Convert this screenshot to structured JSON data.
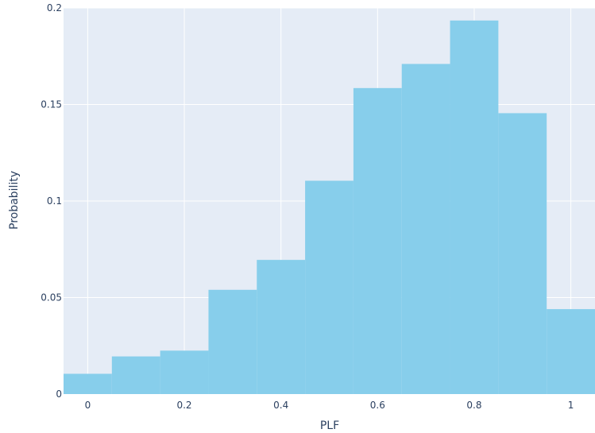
{
  "chart_data": {
    "type": "bar",
    "subtype": "histogram",
    "xlabel": "PLF",
    "ylabel": "Probability",
    "bins": [
      {
        "start": -0.05,
        "end": 0.05,
        "value": 0.0105
      },
      {
        "start": 0.05,
        "end": 0.15,
        "value": 0.0195
      },
      {
        "start": 0.15,
        "end": 0.25,
        "value": 0.0225
      },
      {
        "start": 0.25,
        "end": 0.35,
        "value": 0.054
      },
      {
        "start": 0.35,
        "end": 0.45,
        "value": 0.0695
      },
      {
        "start": 0.45,
        "end": 0.55,
        "value": 0.1105
      },
      {
        "start": 0.55,
        "end": 0.65,
        "value": 0.1585
      },
      {
        "start": 0.65,
        "end": 0.75,
        "value": 0.171
      },
      {
        "start": 0.75,
        "end": 0.85,
        "value": 0.1935
      },
      {
        "start": 0.85,
        "end": 0.95,
        "value": 0.1455
      },
      {
        "start": 0.95,
        "end": 1.05,
        "value": 0.044
      }
    ],
    "xlim": [
      -0.05,
      1.05
    ],
    "ylim": [
      0,
      0.2
    ],
    "xticks": [
      0,
      0.2,
      0.4,
      0.6,
      0.8,
      1
    ],
    "xtick_labels": [
      "0",
      "0.2",
      "0.4",
      "0.6",
      "0.8",
      "1"
    ],
    "yticks": [
      0,
      0.05,
      0.1,
      0.15,
      0.2
    ],
    "ytick_labels": [
      "0",
      "0.05",
      "0.1",
      "0.15",
      "0.2"
    ],
    "grid": true,
    "colors": {
      "bar": "#87ceeb",
      "plot_background": "#e5ecf6",
      "grid": "#ffffff",
      "text": "#2a3f5f"
    }
  }
}
